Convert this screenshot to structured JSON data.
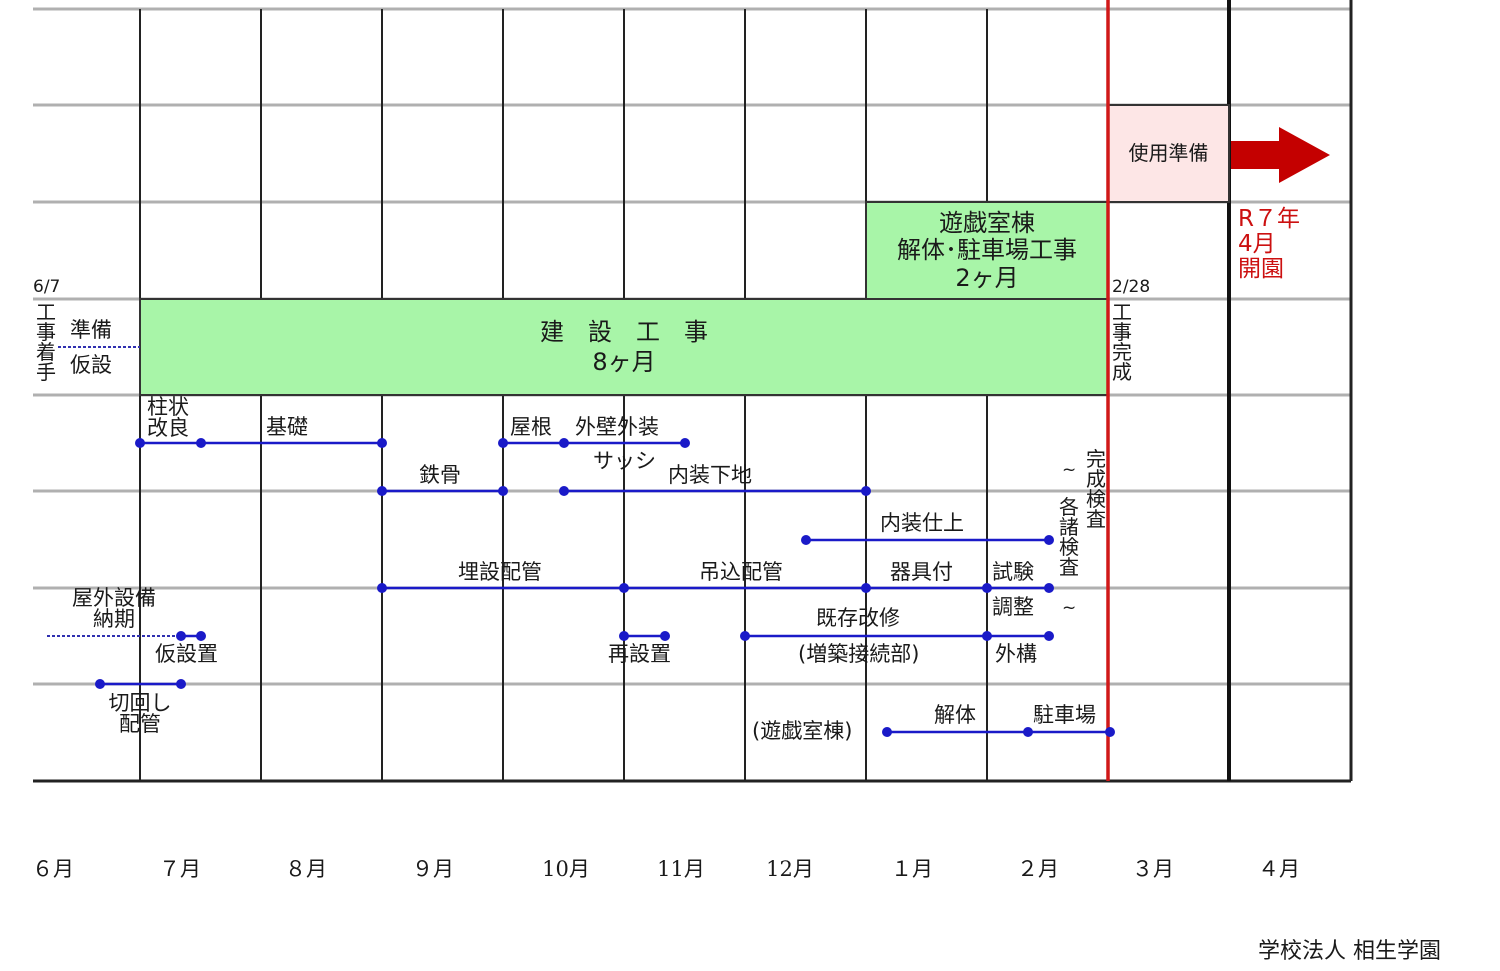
{
  "start_date": "6/7",
  "start_label": "工事着手",
  "prep_label": "準備",
  "temp_label": "仮設",
  "construction_box": {
    "title": "建　設　工　事",
    "duration": "8ヶ月"
  },
  "demolition_box": {
    "line1": "遊戯室棟",
    "line2": "解体･駐車場工事",
    "line3": "2ヶ月"
  },
  "end_date": "2/28",
  "end_label": "工事完成",
  "usage_prep_label": "使用準備",
  "opening": {
    "line1": "R７年",
    "line2": "4月",
    "line3": "開園"
  },
  "tasks": {
    "soil": "柱状\n改良",
    "foundation": "基礎",
    "roof": "屋根",
    "exterior": "外壁外装",
    "sash": "サッシ",
    "steel": "鉄骨",
    "interior_base": "内装下地",
    "interior_finish": "内装仕上",
    "inspection_label": "完成検査",
    "inspection_sub": "各諸検査",
    "buried_piping": "埋設配管",
    "hanging_piping": "吊込配管",
    "fixtures": "器具付",
    "test": "試験",
    "adjust": "調整",
    "outdoor_equip": "屋外設備\n納期",
    "temp_install": "仮設置",
    "reinstall": "再設置",
    "renovation": "既存改修",
    "renovation_sub": "(増築接続部)",
    "exterior_works": "外構",
    "switch_piping": "切回し\n配管",
    "playroom": "(遊戯室棟)",
    "demolition": "解体",
    "parking": "駐車場"
  },
  "months": [
    "６月",
    "７月",
    "８月",
    "９月",
    "10月",
    "11月",
    "12月",
    "１月",
    "２月",
    "３月",
    "４月"
  ],
  "footer": "学校法人 相生学園",
  "colors": {
    "bar_green": "#a8f5a8",
    "line_blue": "#1a1ac8",
    "red": "#cc1010",
    "usage_bg": "#fde6e6"
  }
}
